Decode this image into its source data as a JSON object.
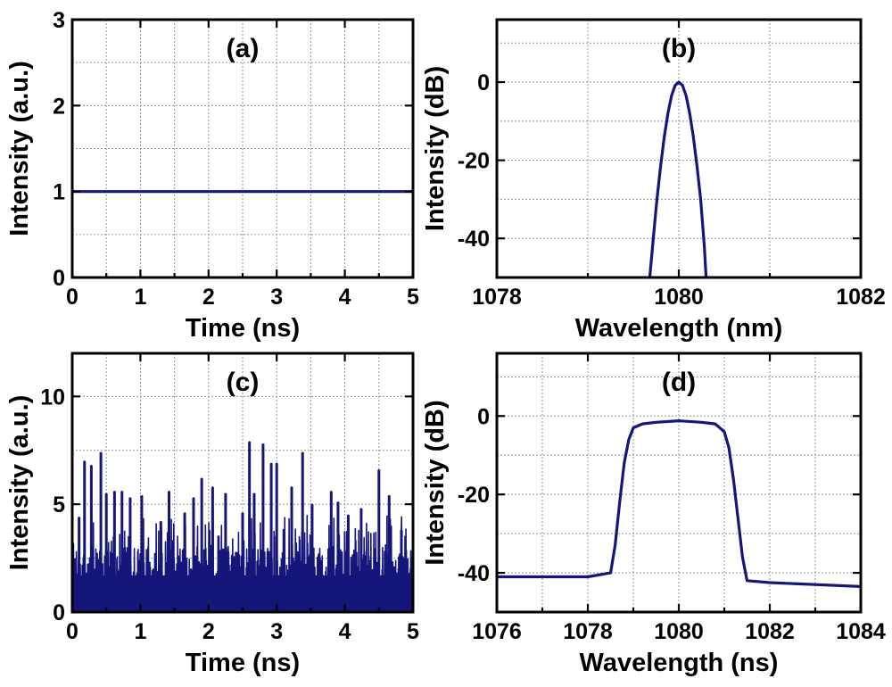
{
  "colors": {
    "series": "#15157a",
    "frame": "#000000",
    "grid": "#8a9a9a"
  },
  "chart_data": [
    {
      "panel": "a",
      "type": "line",
      "title": "(a)",
      "xlabel": "Time (ns)",
      "ylabel": "Intensity (a.u.)",
      "xlim": [
        0,
        5
      ],
      "ylim": [
        0,
        3
      ],
      "xticks": [
        0,
        1,
        2,
        3,
        4,
        5
      ],
      "yticks": [
        0,
        1,
        2,
        3
      ],
      "xticklabels": [
        "0",
        "1",
        "2",
        "3",
        "4",
        "5"
      ],
      "yticklabels": [
        "0",
        "1",
        "2",
        "3"
      ],
      "grid": true,
      "series": [
        {
          "x": [
            0,
            5
          ],
          "y": [
            1,
            1
          ]
        }
      ]
    },
    {
      "panel": "b",
      "type": "line",
      "title": "(b)",
      "xlabel": "Wavelength (nm)",
      "ylabel": "Intensity (dB)",
      "xlim": [
        1078,
        1082
      ],
      "ylim": [
        -50,
        16
      ],
      "xticks": [
        1078,
        1080,
        1082
      ],
      "yticks": [
        -40,
        -20,
        0
      ],
      "xticklabels": [
        "1078",
        "1080",
        "1082"
      ],
      "yticklabels": [
        "-40",
        "-20",
        "0"
      ],
      "grid": true,
      "series": [
        {
          "x": [
            1079.68,
            1079.72,
            1079.76,
            1079.8,
            1079.84,
            1079.88,
            1079.92,
            1079.96,
            1080.0,
            1080.04,
            1080.08,
            1080.12,
            1080.16,
            1080.2,
            1080.24,
            1080.28,
            1080.3
          ],
          "y": [
            -50,
            -40,
            -30,
            -21.5,
            -14,
            -8,
            -3.5,
            -0.8,
            0,
            -0.8,
            -3.5,
            -8,
            -14,
            -21.5,
            -30,
            -42,
            -50
          ]
        }
      ]
    },
    {
      "panel": "c",
      "type": "line",
      "title": "(c)",
      "xlabel": "Time (ns)",
      "ylabel": "Intensity (a.u.)",
      "xlim": [
        0,
        5
      ],
      "ylim": [
        0,
        12
      ],
      "xticks": [
        0,
        1,
        2,
        3,
        4,
        5
      ],
      "yticks": [
        0,
        5,
        10
      ],
      "xticklabels": [
        "0",
        "1",
        "2",
        "3",
        "4",
        "5"
      ],
      "yticklabels": [
        "0",
        "5",
        "10"
      ],
      "grid": true,
      "noise": {
        "mean": 1.0,
        "floor_max": 2.5,
        "band_max": 4.5
      },
      "peaks": [
        {
          "x": 0.1,
          "y": 4.4
        },
        {
          "x": 0.18,
          "y": 7.0
        },
        {
          "x": 0.28,
          "y": 6.8
        },
        {
          "x": 0.42,
          "y": 7.4
        },
        {
          "x": 0.5,
          "y": 5.5
        },
        {
          "x": 0.62,
          "y": 5.6
        },
        {
          "x": 0.73,
          "y": 5.6
        },
        {
          "x": 0.85,
          "y": 5.3
        },
        {
          "x": 1.02,
          "y": 5.4
        },
        {
          "x": 1.3,
          "y": 4.2
        },
        {
          "x": 1.42,
          "y": 5.6
        },
        {
          "x": 1.65,
          "y": 4.6
        },
        {
          "x": 1.78,
          "y": 5.3
        },
        {
          "x": 1.9,
          "y": 6.2
        },
        {
          "x": 2.06,
          "y": 5.8
        },
        {
          "x": 2.25,
          "y": 5.5
        },
        {
          "x": 2.5,
          "y": 4.6
        },
        {
          "x": 2.6,
          "y": 7.9
        },
        {
          "x": 2.67,
          "y": 5.5
        },
        {
          "x": 2.8,
          "y": 7.8
        },
        {
          "x": 2.92,
          "y": 6.9
        },
        {
          "x": 3.0,
          "y": 6.9
        },
        {
          "x": 3.22,
          "y": 5.8
        },
        {
          "x": 3.38,
          "y": 7.4
        },
        {
          "x": 3.52,
          "y": 5.0
        },
        {
          "x": 3.8,
          "y": 5.6
        },
        {
          "x": 3.9,
          "y": 5.1
        },
        {
          "x": 4.05,
          "y": 4.5
        },
        {
          "x": 4.24,
          "y": 4.8
        },
        {
          "x": 4.5,
          "y": 6.6
        },
        {
          "x": 4.65,
          "y": 5.4
        },
        {
          "x": 4.83,
          "y": 3.8
        }
      ]
    },
    {
      "panel": "d",
      "type": "line",
      "title": "(d)",
      "xlabel": "Wavelength (ns)",
      "ylabel": "Intensity (dB)",
      "xlim": [
        1076,
        1084
      ],
      "ylim": [
        -50,
        16
      ],
      "xticks": [
        1076,
        1078,
        1080,
        1082,
        1084
      ],
      "yticks": [
        -40,
        -20,
        0
      ],
      "xticklabels": [
        "1076",
        "1078",
        "1080",
        "1082",
        "1084"
      ],
      "yticklabels": [
        "-40",
        "-20",
        "0"
      ],
      "grid": true,
      "series": [
        {
          "x": [
            1076,
            1077,
            1078,
            1078.5,
            1078.6,
            1078.7,
            1078.8,
            1078.9,
            1079.0,
            1079.2,
            1079.5,
            1080.0,
            1080.5,
            1080.8,
            1081.0,
            1081.1,
            1081.2,
            1081.3,
            1081.4,
            1081.5,
            1082,
            1083,
            1084
          ],
          "y": [
            -41,
            -41,
            -41,
            -40,
            -33,
            -22,
            -12,
            -6,
            -3,
            -2,
            -1.6,
            -1.2,
            -1.6,
            -2,
            -4,
            -8,
            -16,
            -26,
            -36,
            -42,
            -42.5,
            -43,
            -43.5
          ]
        }
      ]
    }
  ]
}
